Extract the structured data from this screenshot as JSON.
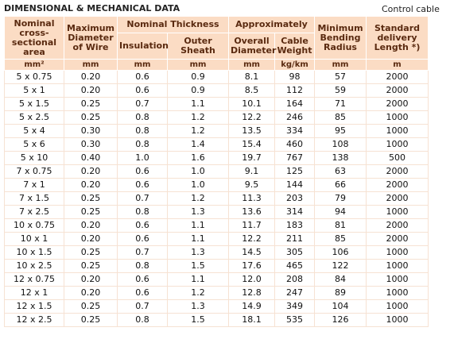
{
  "header": {
    "title": "DIMENSIONAL & MECHANICAL DATA",
    "subtitle": "Control cable"
  },
  "table": {
    "head": [
      "Nominal cross-sectional area",
      "Maximum Diameter of Wire",
      "Nominal Thickness",
      "Approximately",
      "Minimum Bending Radius",
      "Standard delivery Length *)"
    ],
    "subhead": [
      "Insulation",
      "Outer Sheath",
      "Overall Diameter",
      "Cable Weight"
    ],
    "units": [
      "mm²",
      "mm",
      "mm",
      "mm",
      "mm",
      "kg/km",
      "mm",
      "m"
    ],
    "rows": [
      [
        "5 x 0.75",
        "0.20",
        "0.6",
        "0.9",
        "8.1",
        "98",
        "57",
        "2000"
      ],
      [
        "5 x 1",
        "0.20",
        "0.6",
        "0.9",
        "8.5",
        "112",
        "59",
        "2000"
      ],
      [
        "5 x 1.5",
        "0.25",
        "0.7",
        "1.1",
        "10.1",
        "164",
        "71",
        "2000"
      ],
      [
        "5 x 2.5",
        "0.25",
        "0.8",
        "1.2",
        "12.2",
        "246",
        "85",
        "1000"
      ],
      [
        "5 x 4",
        "0.30",
        "0.8",
        "1.2",
        "13.5",
        "334",
        "95",
        "1000"
      ],
      [
        "5 x 6",
        "0.30",
        "0.8",
        "1.4",
        "15.4",
        "460",
        "108",
        "1000"
      ],
      [
        "5 x 10",
        "0.40",
        "1.0",
        "1.6",
        "19.7",
        "767",
        "138",
        "500"
      ],
      [
        "7 x 0.75",
        "0.20",
        "0.6",
        "1.0",
        "9.1",
        "125",
        "63",
        "2000"
      ],
      [
        "7 x 1",
        "0.20",
        "0.6",
        "1.0",
        "9.5",
        "144",
        "66",
        "2000"
      ],
      [
        "7 x 1.5",
        "0.25",
        "0.7",
        "1.2",
        "11.3",
        "203",
        "79",
        "2000"
      ],
      [
        "7 x 2.5",
        "0.25",
        "0.8",
        "1.3",
        "13.6",
        "314",
        "94",
        "1000"
      ],
      [
        "10 x 0.75",
        "0.20",
        "0.6",
        "1.1",
        "11.7",
        "183",
        "81",
        "2000"
      ],
      [
        "10 x 1",
        "0.20",
        "0.6",
        "1.1",
        "12.2",
        "211",
        "85",
        "2000"
      ],
      [
        "10 x 1.5",
        "0.25",
        "0.7",
        "1.3",
        "14.5",
        "305",
        "106",
        "1000"
      ],
      [
        "10 x 2.5",
        "0.25",
        "0.8",
        "1.5",
        "17.6",
        "465",
        "122",
        "1000"
      ],
      [
        "12 x 0.75",
        "0.20",
        "0.6",
        "1.1",
        "12.0",
        "208",
        "84",
        "1000"
      ],
      [
        "12 x 1",
        "0.20",
        "0.6",
        "1.2",
        "12.8",
        "247",
        "89",
        "1000"
      ],
      [
        "12 x 1.5",
        "0.25",
        "0.7",
        "1.3",
        "14.9",
        "349",
        "104",
        "1000"
      ],
      [
        "12 x 2.5",
        "0.25",
        "0.8",
        "1.5",
        "18.1",
        "535",
        "126",
        "1000"
      ]
    ]
  }
}
